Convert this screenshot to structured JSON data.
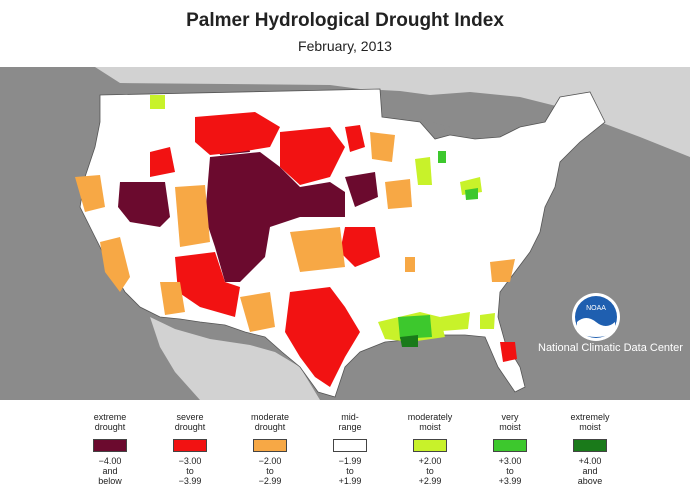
{
  "header": {
    "title": "Palmer Hydrological Drought Index",
    "subtitle": "February, 2013"
  },
  "credit": "National Climatic Data Center",
  "logo_text": "NOAA",
  "colors": {
    "ocean": "#8b8b8b",
    "land": "#ffffff",
    "extreme_drought": "#6b0a2e",
    "severe_drought": "#f21212",
    "moderate_drought": "#f7a845",
    "mid_range": "#ffffff",
    "moderately_moist": "#c8f22a",
    "very_moist": "#3dc82d",
    "extremely_moist": "#1a7a1a"
  },
  "legend": [
    {
      "label": "extreme\ndrought",
      "range": "−4.00\nand\nbelow",
      "color": "#6b0a2e"
    },
    {
      "label": "severe\ndrought",
      "range": "−3.00\nto\n−3.99",
      "color": "#f21212"
    },
    {
      "label": "moderate\ndrought",
      "range": "−2.00\nto\n−2.99",
      "color": "#f7a845"
    },
    {
      "label": "mid-\nrange",
      "range": "−1.99\nto\n+1.99",
      "color": "#ffffff"
    },
    {
      "label": "moderately\nmoist",
      "range": "+2.00\nto\n+2.99",
      "color": "#c8f22a"
    },
    {
      "label": "very\nmoist",
      "range": "+3.00\nto\n+3.99",
      "color": "#3dc82d"
    },
    {
      "label": "extremely\nmoist",
      "range": "+4.00\nand\nabove",
      "color": "#1a7a1a"
    }
  ]
}
